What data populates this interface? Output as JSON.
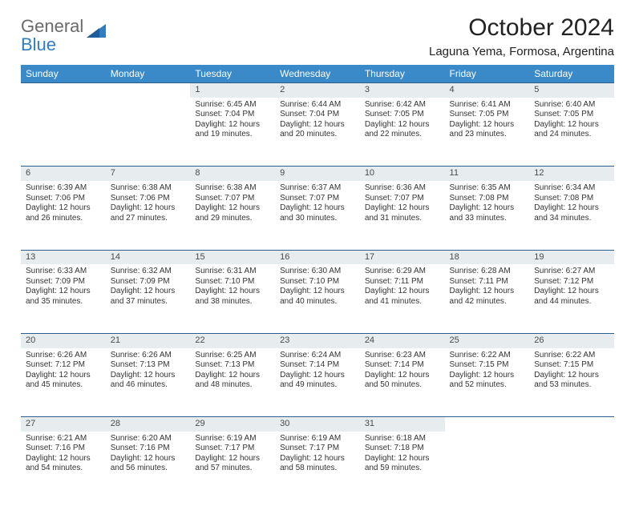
{
  "brand": {
    "general": "General",
    "blue": "Blue"
  },
  "title": "October 2024",
  "location": "Laguna Yema, Formosa, Argentina",
  "colors": {
    "header_bg": "#3a8ac9",
    "header_text": "#ffffff",
    "daynum_bg": "#e7ecef",
    "daynum_border": "#2c5e8a",
    "logo_gray": "#6a6a6a",
    "logo_blue": "#2f7ec2"
  },
  "weekdays": [
    "Sunday",
    "Monday",
    "Tuesday",
    "Wednesday",
    "Thursday",
    "Friday",
    "Saturday"
  ],
  "weeks": [
    [
      null,
      null,
      {
        "n": "1",
        "sr": "6:45 AM",
        "ss": "7:04 PM",
        "dl": "12 hours and 19 minutes."
      },
      {
        "n": "2",
        "sr": "6:44 AM",
        "ss": "7:04 PM",
        "dl": "12 hours and 20 minutes."
      },
      {
        "n": "3",
        "sr": "6:42 AM",
        "ss": "7:05 PM",
        "dl": "12 hours and 22 minutes."
      },
      {
        "n": "4",
        "sr": "6:41 AM",
        "ss": "7:05 PM",
        "dl": "12 hours and 23 minutes."
      },
      {
        "n": "5",
        "sr": "6:40 AM",
        "ss": "7:05 PM",
        "dl": "12 hours and 24 minutes."
      }
    ],
    [
      {
        "n": "6",
        "sr": "6:39 AM",
        "ss": "7:06 PM",
        "dl": "12 hours and 26 minutes."
      },
      {
        "n": "7",
        "sr": "6:38 AM",
        "ss": "7:06 PM",
        "dl": "12 hours and 27 minutes."
      },
      {
        "n": "8",
        "sr": "6:38 AM",
        "ss": "7:07 PM",
        "dl": "12 hours and 29 minutes."
      },
      {
        "n": "9",
        "sr": "6:37 AM",
        "ss": "7:07 PM",
        "dl": "12 hours and 30 minutes."
      },
      {
        "n": "10",
        "sr": "6:36 AM",
        "ss": "7:07 PM",
        "dl": "12 hours and 31 minutes."
      },
      {
        "n": "11",
        "sr": "6:35 AM",
        "ss": "7:08 PM",
        "dl": "12 hours and 33 minutes."
      },
      {
        "n": "12",
        "sr": "6:34 AM",
        "ss": "7:08 PM",
        "dl": "12 hours and 34 minutes."
      }
    ],
    [
      {
        "n": "13",
        "sr": "6:33 AM",
        "ss": "7:09 PM",
        "dl": "12 hours and 35 minutes."
      },
      {
        "n": "14",
        "sr": "6:32 AM",
        "ss": "7:09 PM",
        "dl": "12 hours and 37 minutes."
      },
      {
        "n": "15",
        "sr": "6:31 AM",
        "ss": "7:10 PM",
        "dl": "12 hours and 38 minutes."
      },
      {
        "n": "16",
        "sr": "6:30 AM",
        "ss": "7:10 PM",
        "dl": "12 hours and 40 minutes."
      },
      {
        "n": "17",
        "sr": "6:29 AM",
        "ss": "7:11 PM",
        "dl": "12 hours and 41 minutes."
      },
      {
        "n": "18",
        "sr": "6:28 AM",
        "ss": "7:11 PM",
        "dl": "12 hours and 42 minutes."
      },
      {
        "n": "19",
        "sr": "6:27 AM",
        "ss": "7:12 PM",
        "dl": "12 hours and 44 minutes."
      }
    ],
    [
      {
        "n": "20",
        "sr": "6:26 AM",
        "ss": "7:12 PM",
        "dl": "12 hours and 45 minutes."
      },
      {
        "n": "21",
        "sr": "6:26 AM",
        "ss": "7:13 PM",
        "dl": "12 hours and 46 minutes."
      },
      {
        "n": "22",
        "sr": "6:25 AM",
        "ss": "7:13 PM",
        "dl": "12 hours and 48 minutes."
      },
      {
        "n": "23",
        "sr": "6:24 AM",
        "ss": "7:14 PM",
        "dl": "12 hours and 49 minutes."
      },
      {
        "n": "24",
        "sr": "6:23 AM",
        "ss": "7:14 PM",
        "dl": "12 hours and 50 minutes."
      },
      {
        "n": "25",
        "sr": "6:22 AM",
        "ss": "7:15 PM",
        "dl": "12 hours and 52 minutes."
      },
      {
        "n": "26",
        "sr": "6:22 AM",
        "ss": "7:15 PM",
        "dl": "12 hours and 53 minutes."
      }
    ],
    [
      {
        "n": "27",
        "sr": "6:21 AM",
        "ss": "7:16 PM",
        "dl": "12 hours and 54 minutes."
      },
      {
        "n": "28",
        "sr": "6:20 AM",
        "ss": "7:16 PM",
        "dl": "12 hours and 56 minutes."
      },
      {
        "n": "29",
        "sr": "6:19 AM",
        "ss": "7:17 PM",
        "dl": "12 hours and 57 minutes."
      },
      {
        "n": "30",
        "sr": "6:19 AM",
        "ss": "7:17 PM",
        "dl": "12 hours and 58 minutes."
      },
      {
        "n": "31",
        "sr": "6:18 AM",
        "ss": "7:18 PM",
        "dl": "12 hours and 59 minutes."
      },
      null,
      null
    ]
  ],
  "labels": {
    "sunrise": "Sunrise:",
    "sunset": "Sunset:",
    "daylight": "Daylight:"
  }
}
